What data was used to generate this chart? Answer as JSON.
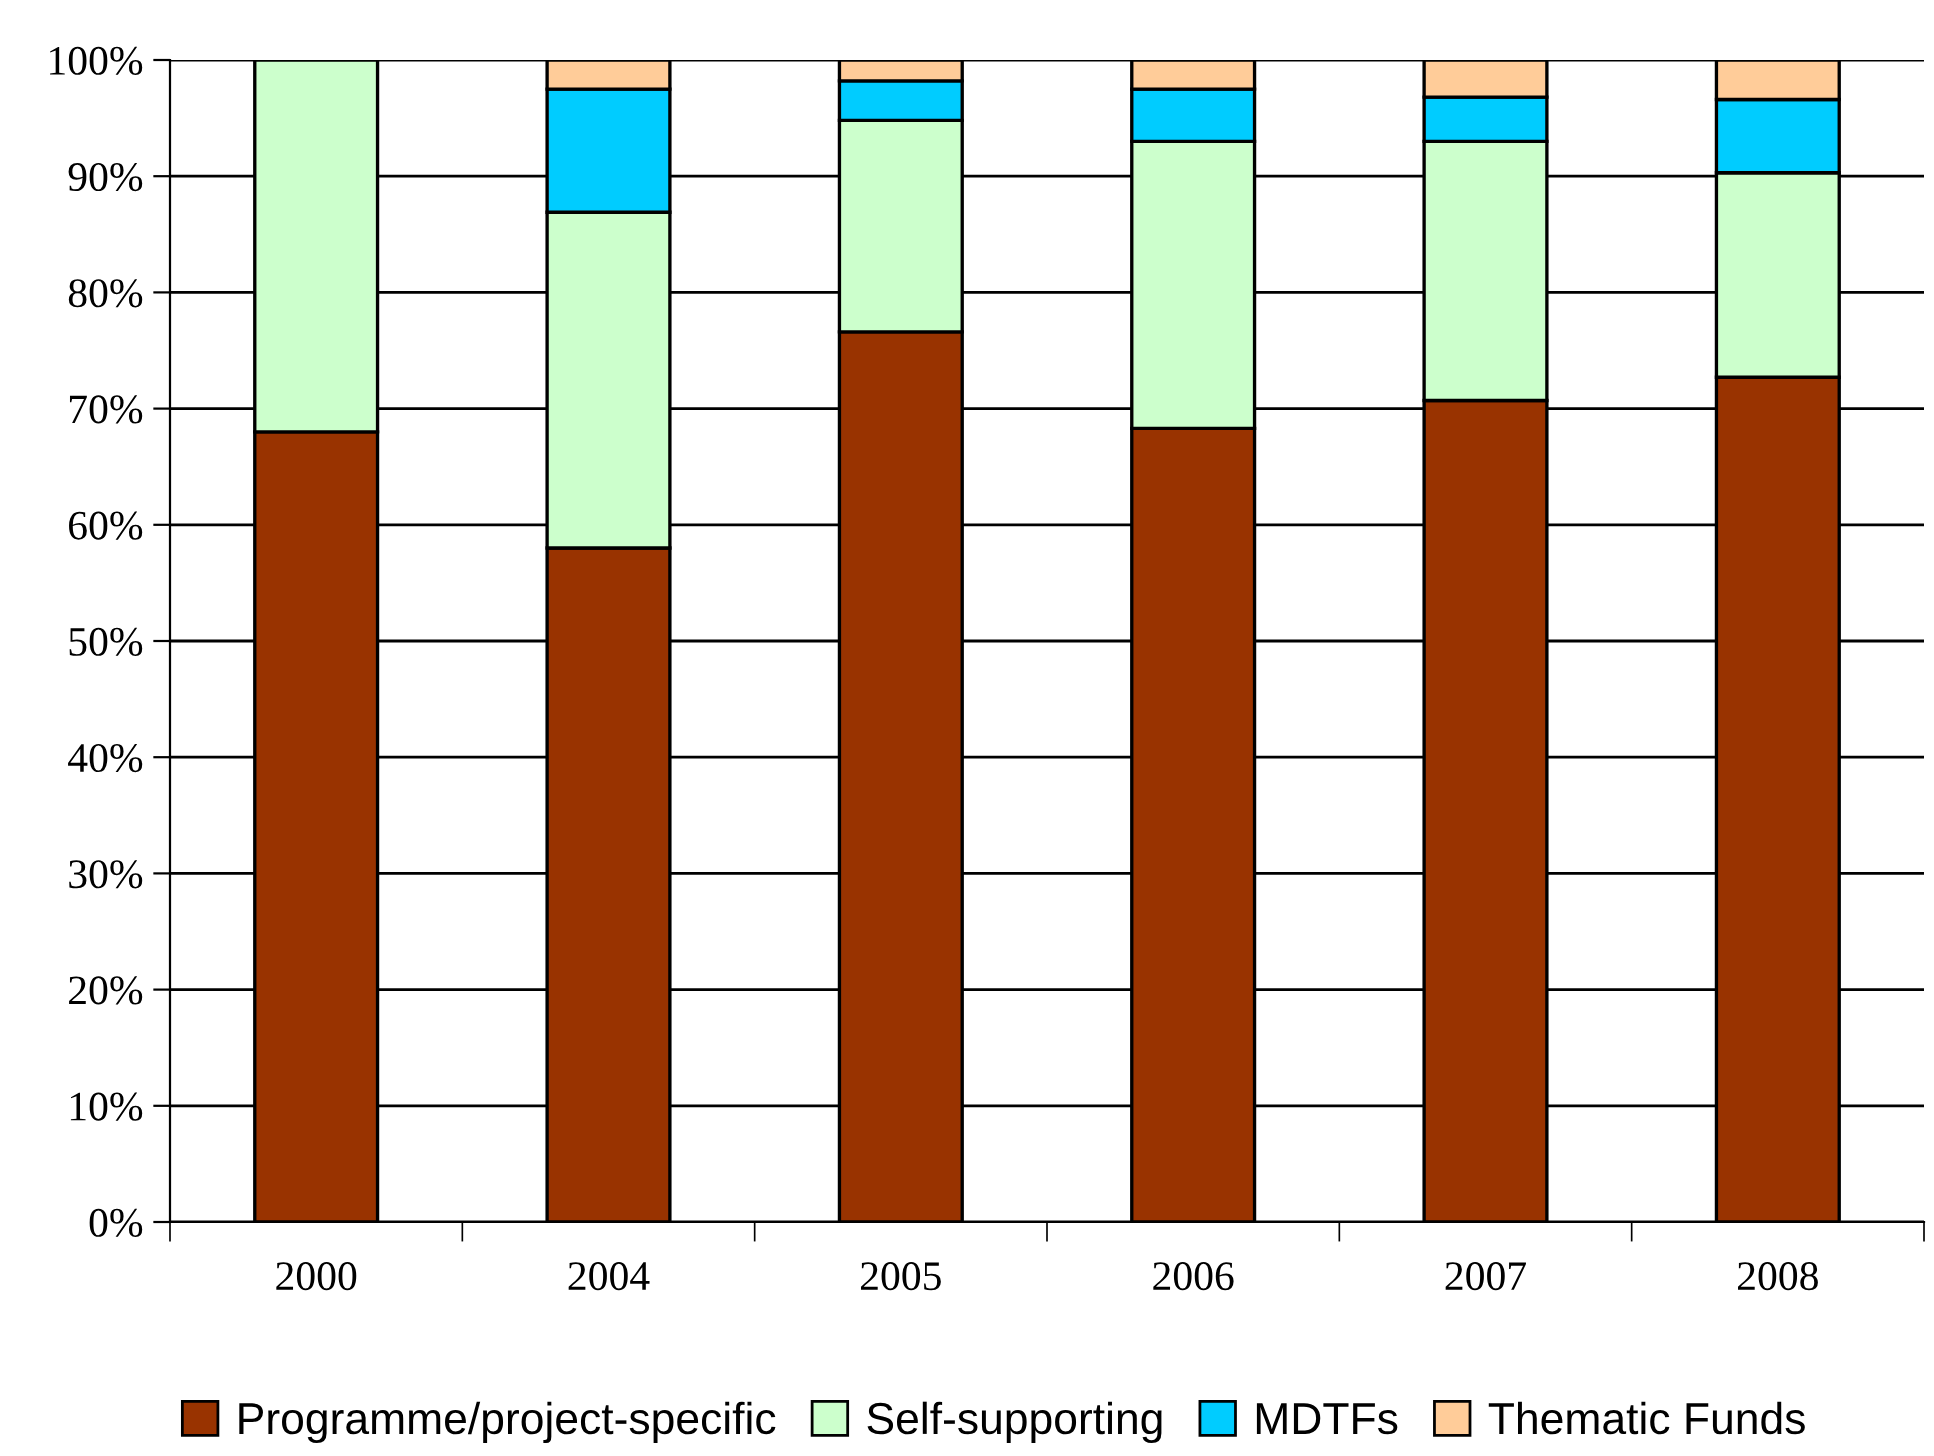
{
  "chart_data": {
    "type": "bar",
    "stacked": true,
    "categories": [
      "2000",
      "2004",
      "2005",
      "2006",
      "2007",
      "2008"
    ],
    "series": [
      {
        "name": "Programme/project-specific",
        "color": "#993300",
        "values": [
          68,
          58,
          76.6,
          68.3,
          70.7,
          72.7
        ]
      },
      {
        "name": "Self-supporting",
        "color": "#ccffcc",
        "values": [
          32,
          28.9,
          18.2,
          24.7,
          22.3,
          17.6
        ]
      },
      {
        "name": "MDTFs",
        "color": "#00ccff",
        "values": [
          null,
          10.6,
          3.4,
          4.5,
          3.8,
          6.3
        ]
      },
      {
        "name": "Thematic Funds",
        "color": "#ffcc99",
        "values": [
          null,
          2.5,
          1.8,
          2.5,
          3.2,
          3.4
        ]
      }
    ],
    "ylim": [
      0,
      100
    ],
    "yticks": [
      {
        "value": 0,
        "label": "0%"
      },
      {
        "value": 10,
        "label": "10%"
      },
      {
        "value": 20,
        "label": "20%"
      },
      {
        "value": 30,
        "label": "30%"
      },
      {
        "value": 40,
        "label": "40%"
      },
      {
        "value": 50,
        "label": "50%"
      },
      {
        "value": 60,
        "label": "60%"
      },
      {
        "value": 70,
        "label": "70%"
      },
      {
        "value": 80,
        "label": "80%"
      },
      {
        "value": 90,
        "label": "90%"
      },
      {
        "value": 100,
        "label": "100%"
      }
    ],
    "grid": "y",
    "legend": "bottom"
  }
}
